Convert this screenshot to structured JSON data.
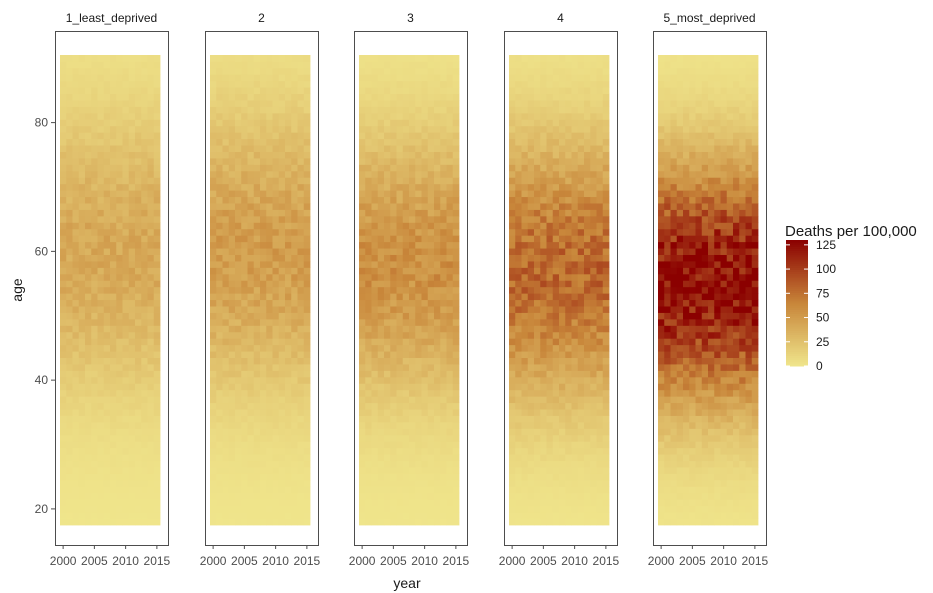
{
  "chart_data": {
    "type": "heatmap",
    "xlabel": "year",
    "ylabel": "age",
    "x_range": [
      2000,
      2015
    ],
    "y_range": [
      18,
      90
    ],
    "x_ticks": [
      2000,
      2005,
      2010,
      2015
    ],
    "x_tick_labels": [
      "2000",
      "2005",
      "2010",
      "2015"
    ],
    "y_ticks": [
      20,
      40,
      60,
      80
    ],
    "y_tick_labels": [
      "20",
      "40",
      "60",
      "80"
    ],
    "grid": false,
    "facets": [
      {
        "label": "1_least_deprived",
        "peak_age": 60,
        "peak_rate": 42,
        "spread": 15
      },
      {
        "label": "2",
        "peak_age": 60,
        "peak_rate": 50,
        "spread": 15
      },
      {
        "label": "3",
        "peak_age": 58,
        "peak_rate": 58,
        "spread": 14
      },
      {
        "label": "4",
        "peak_age": 57,
        "peak_rate": 80,
        "spread": 14
      },
      {
        "label": "5_most_deprived",
        "peak_age": 55,
        "peak_rate": 125,
        "spread": 13
      }
    ],
    "legend": {
      "title": "Deaths per 100,000",
      "position": "right",
      "breaks": [
        0,
        25,
        50,
        75,
        100,
        125
      ],
      "labels": [
        "0",
        "25",
        "50",
        "75",
        "100",
        "125"
      ],
      "range": [
        0,
        130
      ],
      "low_color": "#F0E68C",
      "mid_color": "#C8863A",
      "high_color": "#8B0000"
    }
  }
}
